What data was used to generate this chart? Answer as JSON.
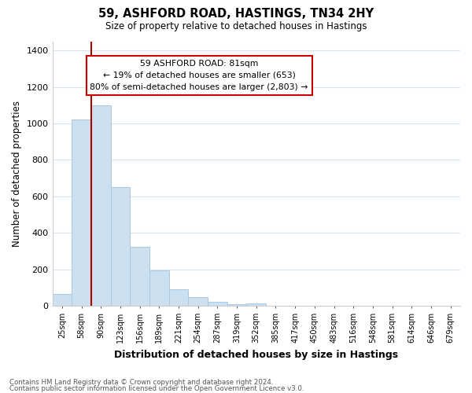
{
  "title": "59, ASHFORD ROAD, HASTINGS, TN34 2HY",
  "subtitle": "Size of property relative to detached houses in Hastings",
  "xlabel": "Distribution of detached houses by size in Hastings",
  "ylabel": "Number of detached properties",
  "bar_labels": [
    "25sqm",
    "58sqm",
    "90sqm",
    "123sqm",
    "156sqm",
    "189sqm",
    "221sqm",
    "254sqm",
    "287sqm",
    "319sqm",
    "352sqm",
    "385sqm",
    "417sqm",
    "450sqm",
    "483sqm",
    "516sqm",
    "548sqm",
    "581sqm",
    "614sqm",
    "646sqm",
    "679sqm"
  ],
  "bar_values": [
    65,
    1020,
    1100,
    650,
    325,
    195,
    90,
    50,
    22,
    10,
    15,
    0,
    0,
    0,
    0,
    0,
    0,
    0,
    0,
    0,
    0
  ],
  "bar_color": "#cce0f0",
  "bar_edge_color": "#aac8e0",
  "ylim": [
    0,
    1450
  ],
  "yticks": [
    0,
    200,
    400,
    600,
    800,
    1000,
    1200,
    1400
  ],
  "annotation_title": "59 ASHFORD ROAD: 81sqm",
  "annotation_line1": "← 19% of detached houses are smaller (653)",
  "annotation_line2": "80% of semi-detached houses are larger (2,803) →",
  "footer_line1": "Contains HM Land Registry data © Crown copyright and database right 2024.",
  "footer_line2": "Contains public sector information licensed under the Open Government Licence v3.0.",
  "background_color": "#ffffff",
  "grid_color": "#d8e4f0"
}
